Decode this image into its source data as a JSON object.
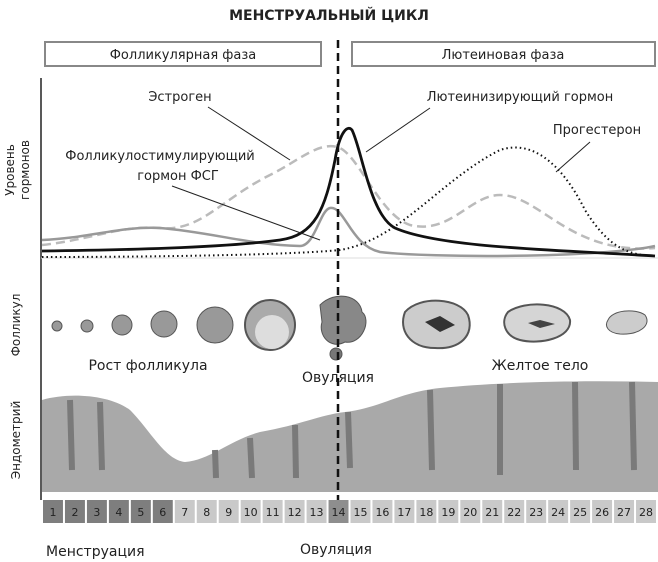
{
  "title": "МЕНСТРУАЛЬНЫЙ ЦИКЛ",
  "phases": {
    "follicular": "Фолликулярная фаза",
    "luteal": "Лютеиновая фаза"
  },
  "row_labels": {
    "hormones_1": "Уровень",
    "hormones_2": "гормонов",
    "follicle": "Фолликул",
    "endometrium": "Эндометрий"
  },
  "hormones": {
    "estrogen": "Эстроген",
    "lh": "Лютеинизирующий гормон",
    "progesterone": "Прогестерон",
    "fsh_1": "Фолликулостимулирующий",
    "fsh_2": "гормон ФСГ"
  },
  "follicle_labels": {
    "growth": "Рост фолликула",
    "ovulation": "Овуляция",
    "corpus_luteum": "Желтое тело"
  },
  "days": [
    "1",
    "2",
    "3",
    "4",
    "5",
    "6",
    "7",
    "8",
    "9",
    "10",
    "11",
    "12",
    "13",
    "14",
    "15",
    "16",
    "17",
    "18",
    "19",
    "20",
    "21",
    "22",
    "23",
    "24",
    "25",
    "26",
    "27",
    "28"
  ],
  "menstruation_days": 6,
  "ovulation_day": 14,
  "bottom_labels": {
    "menstruation": "Менструация",
    "ovulation": "Овуляция"
  },
  "colors": {
    "menstruation": "#7e7e7e",
    "ovulation": "#8e8e8e",
    "other_days": "#c9c9c9",
    "endometrium": "#a9a9a9"
  }
}
